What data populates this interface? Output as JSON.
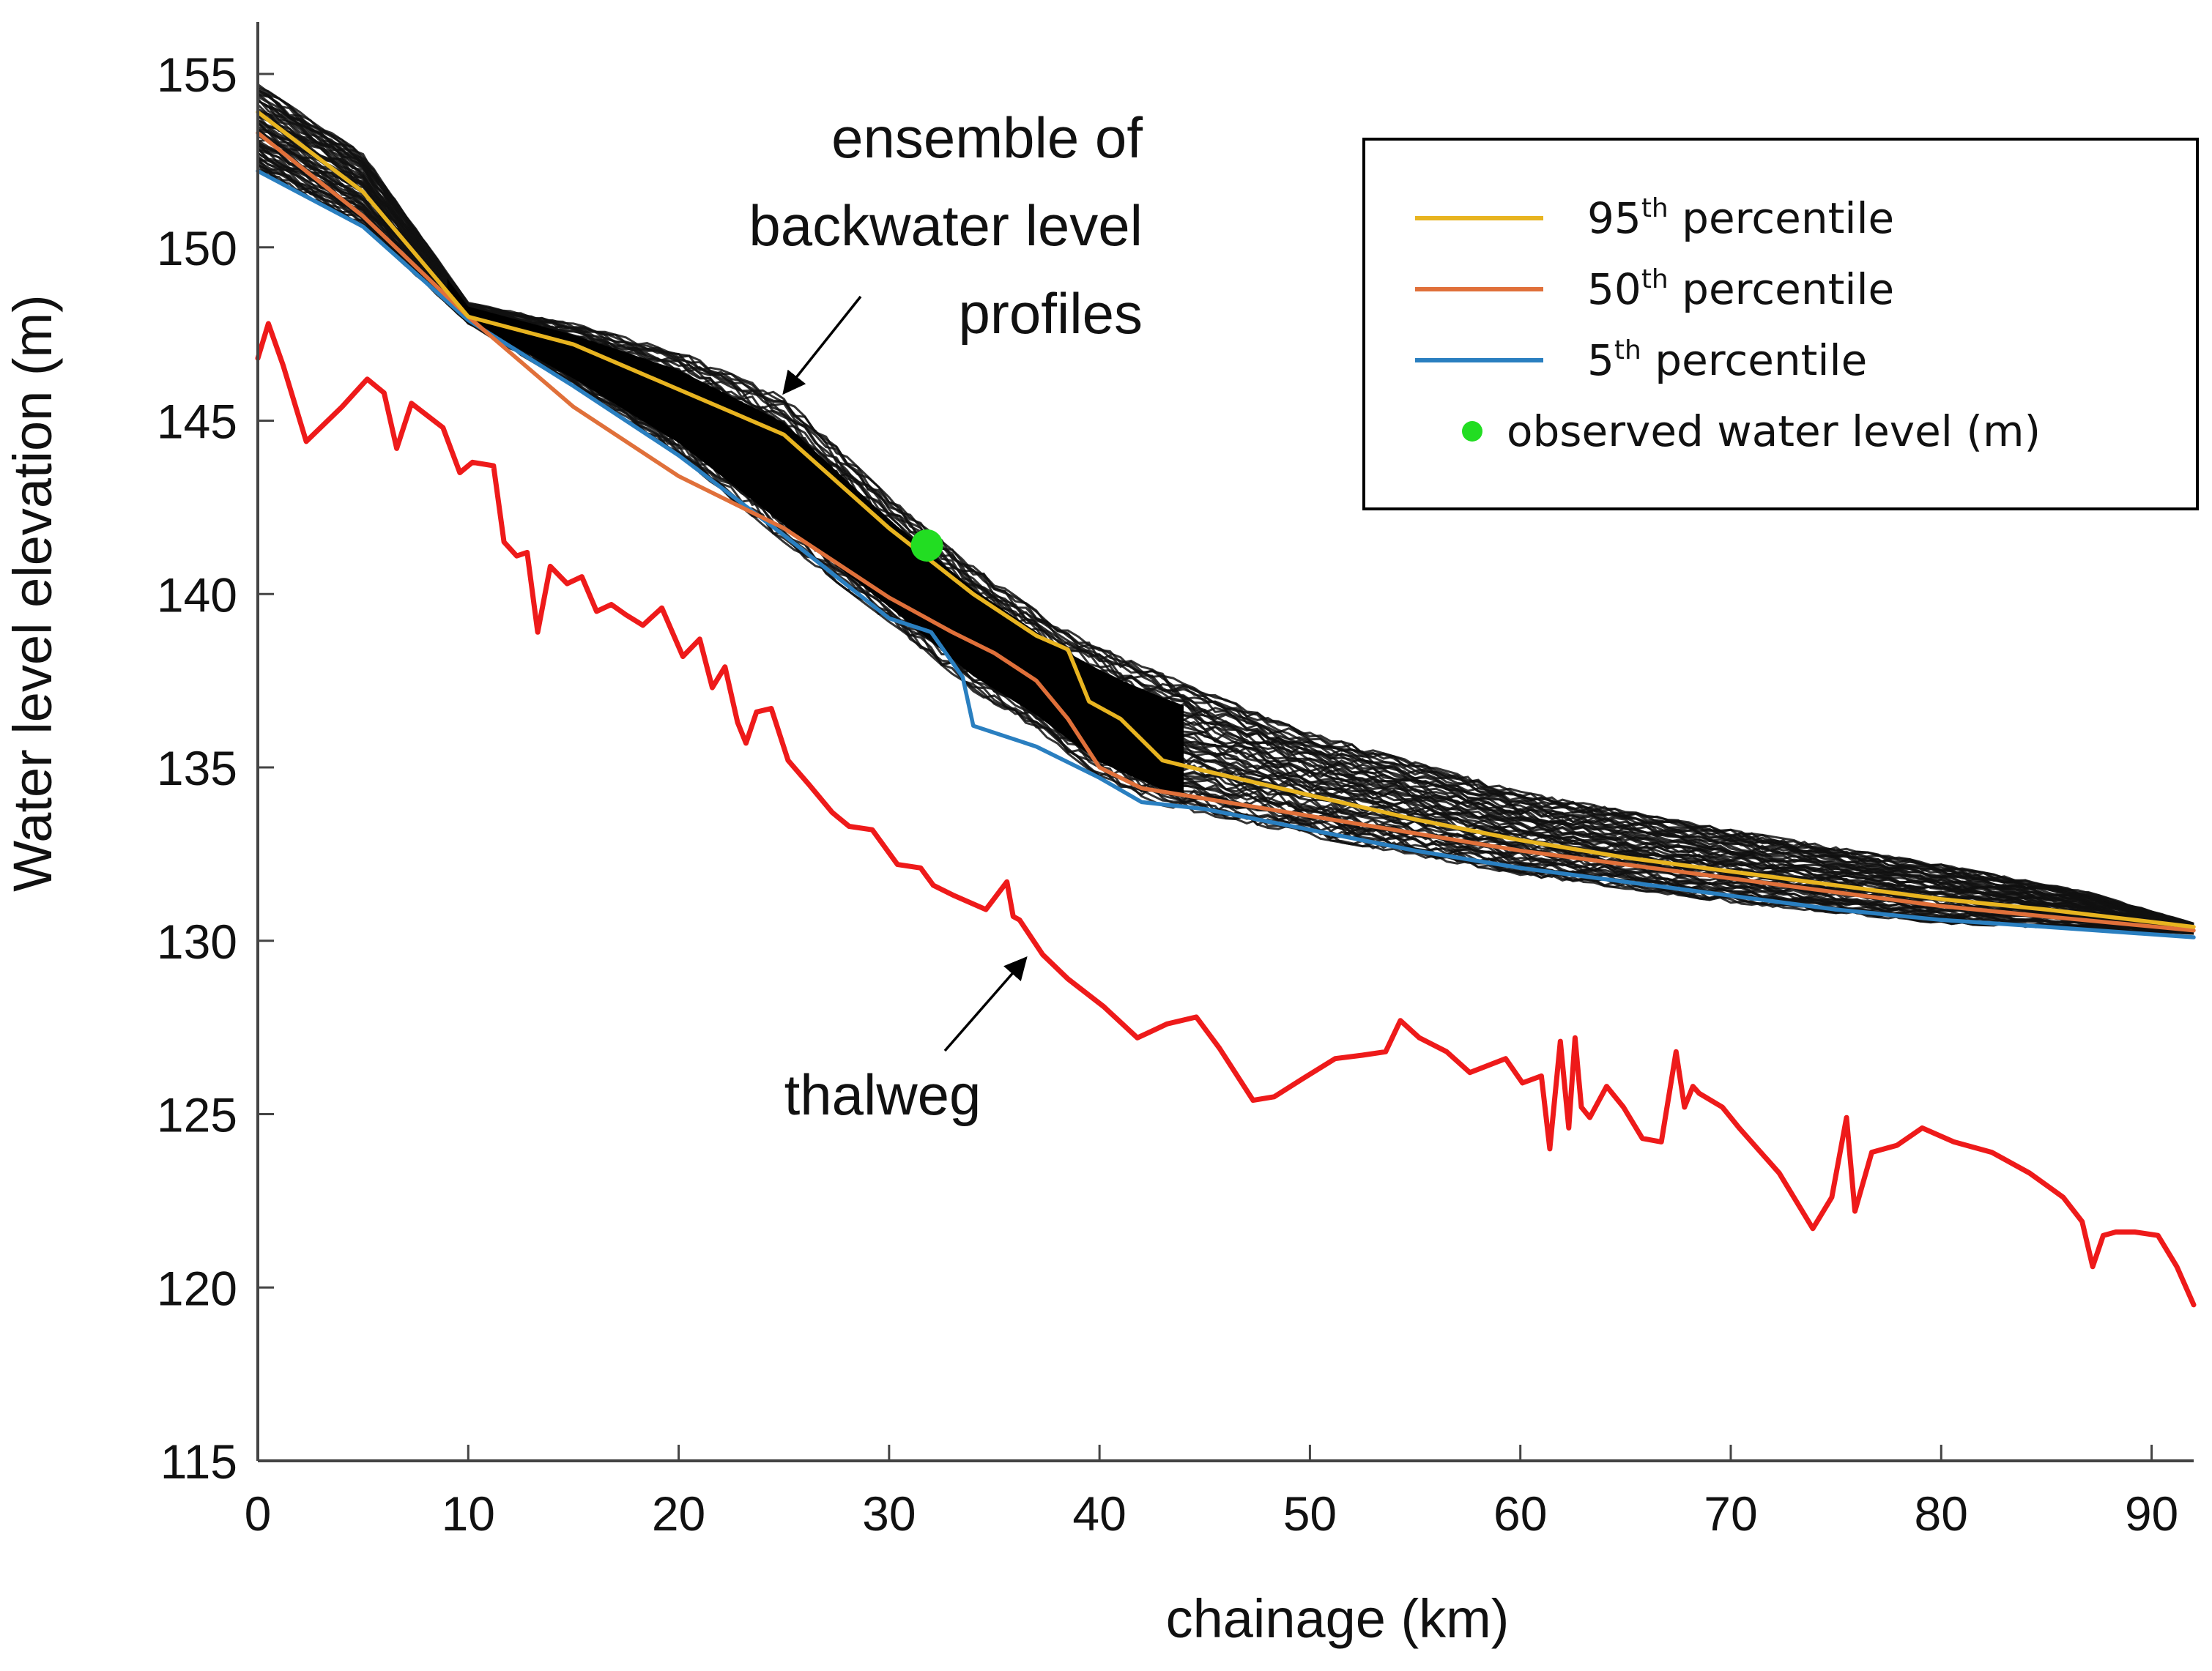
{
  "chart_data": {
    "type": "line",
    "title": "",
    "xlabel": "chainage (km)",
    "ylabel": "Water level elevation (m)",
    "xlim": [
      0,
      92
    ],
    "ylim": [
      115,
      156.5
    ],
    "xticks": [
      0,
      10,
      20,
      30,
      40,
      50,
      60,
      70,
      80,
      90
    ],
    "yticks": [
      115,
      120,
      125,
      130,
      135,
      140,
      145,
      150,
      155
    ],
    "grid": false,
    "legend_position": "top-right",
    "legend": [
      {
        "key": "p95",
        "prefix": "95",
        "sup": "th",
        "suffix": " percentile",
        "color": "#e8b420"
      },
      {
        "key": "p50",
        "prefix": "50",
        "sup": "th",
        "suffix": " percentile",
        "color": "#e0703a"
      },
      {
        "key": "p5",
        "prefix": "5",
        "sup": "th",
        "suffix": " percentile",
        "color": "#2a7fc0"
      },
      {
        "key": "obs",
        "label": "observed water level (m)",
        "color": "#22dd22"
      }
    ],
    "annotations": [
      {
        "lines": [
          "ensemble of",
          "backwater level",
          "profiles"
        ],
        "arrow_from": [
          25.5,
          148.2
        ],
        "arrow_to": [
          25,
          145.8
        ]
      },
      {
        "lines": [
          "thalweg"
        ],
        "arrow_from": [
          33,
          126.8
        ],
        "arrow_to": [
          36.5,
          129.5
        ]
      }
    ],
    "ensemble": {
      "color": "#111111",
      "count": 60,
      "lower_envelope": [
        [
          0,
          152.2
        ],
        [
          5,
          150.6
        ],
        [
          10,
          147.8
        ],
        [
          15,
          146.0
        ],
        [
          20,
          144.0
        ],
        [
          25,
          141.5
        ],
        [
          30,
          139.2
        ],
        [
          34,
          137.2
        ],
        [
          37,
          136.1
        ],
        [
          40,
          134.7
        ],
        [
          43,
          133.9
        ],
        [
          50,
          133.0
        ],
        [
          60,
          131.9
        ],
        [
          70,
          131.1
        ],
        [
          80,
          130.5
        ],
        [
          92,
          130.2
        ]
      ],
      "upper_envelope": [
        [
          0,
          154.7
        ],
        [
          5,
          152.7
        ],
        [
          10,
          148.4
        ],
        [
          15,
          147.8
        ],
        [
          20,
          147.0
        ],
        [
          25,
          145.7
        ],
        [
          30,
          142.8
        ],
        [
          34,
          140.8
        ],
        [
          38,
          139.1
        ],
        [
          41,
          138.2
        ],
        [
          45,
          137.2
        ],
        [
          50,
          136.0
        ],
        [
          60,
          134.3
        ],
        [
          70,
          133.2
        ],
        [
          80,
          132.2
        ],
        [
          87,
          131.4
        ],
        [
          92,
          130.5
        ]
      ]
    },
    "series": [
      {
        "name": "thalweg",
        "color": "#ee1a1a",
        "x": [
          0,
          0.5,
          1.2,
          2.3,
          4,
          5.2,
          6,
          6.6,
          7.3,
          8.8,
          9.6,
          10.2,
          11.2,
          11.7,
          12.3,
          12.8,
          13.3,
          13.9,
          14.7,
          15.4,
          16.1,
          16.8,
          17.5,
          18.3,
          19.2,
          20.2,
          21,
          21.6,
          22.2,
          22.8,
          23.2,
          23.7,
          24.4,
          25.2,
          26.2,
          27.3,
          28.1,
          29.2,
          30.4,
          31.5,
          32.1,
          33.1,
          34.6,
          35.6,
          35.9,
          36.2,
          37.3,
          38.5,
          40.2,
          41.8,
          42.5,
          43.2,
          44.6,
          45.7,
          47.3,
          48.3,
          49.6,
          51.2,
          52.5,
          53.6,
          54.3,
          55.2,
          56.5,
          57.6,
          59.3,
          60.1,
          61,
          61.4,
          61.9,
          62.3,
          62.6,
          62.9,
          63.3,
          64.1,
          64.9,
          65.8,
          66.7,
          67.4,
          67.8,
          68.2,
          68.5,
          69.6,
          70.4,
          72.3,
          73.9,
          74.8,
          75.5,
          75.9,
          76.7,
          77.9,
          79.1,
          80.6,
          82.4,
          84.2,
          85.8,
          86.7,
          87.2,
          87.7,
          88.3,
          89.2,
          90.3,
          91.2,
          92
        ],
        "y": [
          146.8,
          147.8,
          146.6,
          144.4,
          145.4,
          146.2,
          145.8,
          144.2,
          145.5,
          144.8,
          143.5,
          143.8,
          143.7,
          141.5,
          141.1,
          141.2,
          138.9,
          140.8,
          140.3,
          140.5,
          139.5,
          139.7,
          139.4,
          139.1,
          139.6,
          138.2,
          138.7,
          137.3,
          137.9,
          136.3,
          135.7,
          136.6,
          136.7,
          135.2,
          134.5,
          133.7,
          133.3,
          133.2,
          132.2,
          132.1,
          131.6,
          131.3,
          130.9,
          131.7,
          130.7,
          130.6,
          129.6,
          128.9,
          128.1,
          127.2,
          127.4,
          127.6,
          127.8,
          126.9,
          125.4,
          125.5,
          126.0,
          126.6,
          126.7,
          126.8,
          127.7,
          127.2,
          126.8,
          126.2,
          126.6,
          125.9,
          126.1,
          124.0,
          127.1,
          124.6,
          127.2,
          125.2,
          124.9,
          125.8,
          125.2,
          124.3,
          124.2,
          126.8,
          125.2,
          125.8,
          125.6,
          125.2,
          124.6,
          123.3,
          121.7,
          122.6,
          124.9,
          122.2,
          123.9,
          124.1,
          124.6,
          124.2,
          123.9,
          123.3,
          122.6,
          121.9,
          120.6,
          121.5,
          121.6,
          121.6,
          121.5,
          120.6,
          119.5
        ]
      },
      {
        "name": "95th percentile",
        "color": "#e8b420",
        "x": [
          0,
          5,
          10,
          15,
          20,
          25,
          30,
          34,
          37,
          38.5,
          39.5,
          41,
          42.5,
          43,
          45,
          50,
          55,
          60,
          65,
          70,
          75,
          80,
          85,
          92
        ],
        "y": [
          153.9,
          151.6,
          148.0,
          147.2,
          145.9,
          144.6,
          141.9,
          140.0,
          138.8,
          138.4,
          136.9,
          136.4,
          135.5,
          135.2,
          134.9,
          134.2,
          133.5,
          132.9,
          132.4,
          132.0,
          131.6,
          131.2,
          130.9,
          130.4
        ]
      },
      {
        "name": "50th percentile",
        "color": "#e0703a",
        "x": [
          0,
          5,
          10,
          15,
          20,
          25,
          30,
          33,
          35,
          37,
          38.5,
          40,
          42,
          45,
          50,
          55,
          60,
          65,
          70,
          75,
          80,
          85,
          92
        ],
        "y": [
          153.3,
          150.9,
          148.0,
          145.4,
          143.4,
          141.9,
          139.9,
          138.9,
          138.3,
          137.5,
          136.4,
          135.0,
          134.4,
          134.1,
          133.6,
          133.1,
          132.6,
          132.2,
          131.8,
          131.4,
          131.0,
          130.7,
          130.3
        ]
      },
      {
        "name": "5th percentile",
        "color": "#2a7fc0",
        "x": [
          0,
          5,
          10,
          15,
          20,
          25,
          30,
          32,
          33.5,
          34,
          37,
          40,
          42,
          45,
          50,
          55,
          60,
          65,
          70,
          75,
          80,
          85,
          92
        ],
        "y": [
          152.2,
          150.6,
          147.9,
          146.0,
          144.0,
          141.7,
          139.3,
          138.9,
          137.6,
          136.2,
          135.6,
          134.7,
          134.0,
          133.8,
          133.2,
          132.6,
          132.1,
          131.7,
          131.3,
          130.9,
          130.6,
          130.4,
          130.1
        ]
      }
    ],
    "points": [
      {
        "name": "observed water level (m)",
        "x": 31.8,
        "y": 141.4,
        "color": "#22dd22"
      }
    ]
  }
}
